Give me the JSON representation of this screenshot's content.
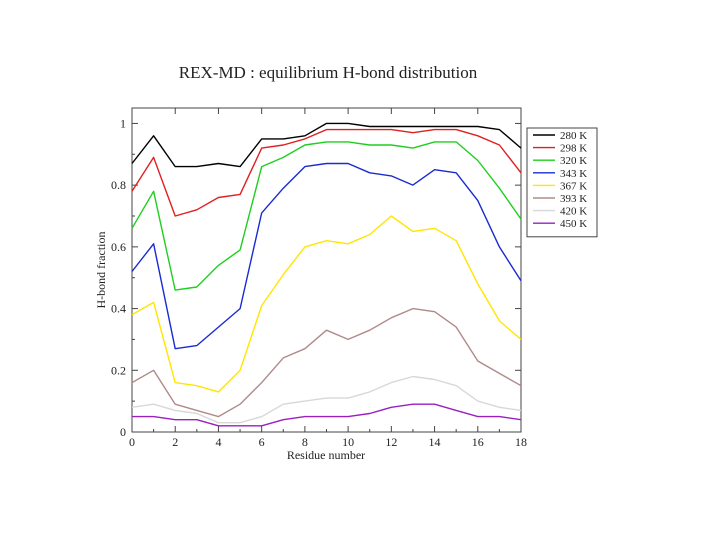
{
  "chart_data": {
    "type": "line",
    "title": "REX-MD : equilibrium H-bond distribution",
    "xlabel": "Residue number",
    "ylabel": "H-bond fraction",
    "xlim": [
      0,
      18
    ],
    "ylim": [
      0,
      1.05
    ],
    "xticks": [
      0,
      2,
      4,
      6,
      8,
      10,
      12,
      14,
      16,
      18
    ],
    "yticks": [
      0,
      0.2,
      0.4,
      0.6,
      0.8,
      1
    ],
    "legend_position": "right",
    "x": [
      0,
      1,
      2,
      3,
      4,
      5,
      6,
      7,
      8,
      9,
      10,
      11,
      12,
      13,
      14,
      15,
      16,
      17,
      18
    ],
    "series": [
      {
        "name": "280 K",
        "color": "#000000",
        "values": [
          0.87,
          0.96,
          0.86,
          0.86,
          0.87,
          0.86,
          0.95,
          0.95,
          0.96,
          1.0,
          1.0,
          0.99,
          0.99,
          0.99,
          0.99,
          0.99,
          0.99,
          0.98,
          0.92
        ]
      },
      {
        "name": "298 K",
        "color": "#e02020",
        "values": [
          0.78,
          0.89,
          0.7,
          0.72,
          0.76,
          0.77,
          0.92,
          0.93,
          0.95,
          0.98,
          0.98,
          0.98,
          0.98,
          0.97,
          0.98,
          0.98,
          0.96,
          0.93,
          0.84
        ]
      },
      {
        "name": "320 K",
        "color": "#1fcf1f",
        "values": [
          0.66,
          0.78,
          0.46,
          0.47,
          0.54,
          0.59,
          0.86,
          0.89,
          0.93,
          0.94,
          0.94,
          0.93,
          0.93,
          0.92,
          0.94,
          0.94,
          0.88,
          0.79,
          0.69
        ]
      },
      {
        "name": "343 K",
        "color": "#1a2bd0",
        "values": [
          0.52,
          0.61,
          0.27,
          0.28,
          0.34,
          0.4,
          0.71,
          0.79,
          0.86,
          0.87,
          0.87,
          0.84,
          0.83,
          0.8,
          0.85,
          0.84,
          0.75,
          0.6,
          0.49
        ]
      },
      {
        "name": "367 K",
        "color": "#ffe600",
        "values": [
          0.38,
          0.42,
          0.16,
          0.15,
          0.13,
          0.2,
          0.41,
          0.51,
          0.6,
          0.62,
          0.61,
          0.64,
          0.7,
          0.65,
          0.66,
          0.62,
          0.48,
          0.36,
          0.3
        ]
      },
      {
        "name": "393 K",
        "color": "#b08a8a",
        "values": [
          0.16,
          0.2,
          0.09,
          0.07,
          0.05,
          0.09,
          0.16,
          0.24,
          0.27,
          0.33,
          0.3,
          0.33,
          0.37,
          0.4,
          0.39,
          0.34,
          0.23,
          0.19,
          0.15
        ]
      },
      {
        "name": "420 K",
        "color": "#d8d8d8",
        "values": [
          0.08,
          0.09,
          0.07,
          0.06,
          0.03,
          0.03,
          0.05,
          0.09,
          0.1,
          0.11,
          0.11,
          0.13,
          0.16,
          0.18,
          0.17,
          0.15,
          0.1,
          0.08,
          0.07
        ]
      },
      {
        "name": "450 K",
        "color": "#9a1fc0",
        "values": [
          0.05,
          0.05,
          0.04,
          0.04,
          0.02,
          0.02,
          0.02,
          0.04,
          0.05,
          0.05,
          0.05,
          0.06,
          0.08,
          0.09,
          0.09,
          0.07,
          0.05,
          0.05,
          0.04
        ]
      }
    ]
  }
}
